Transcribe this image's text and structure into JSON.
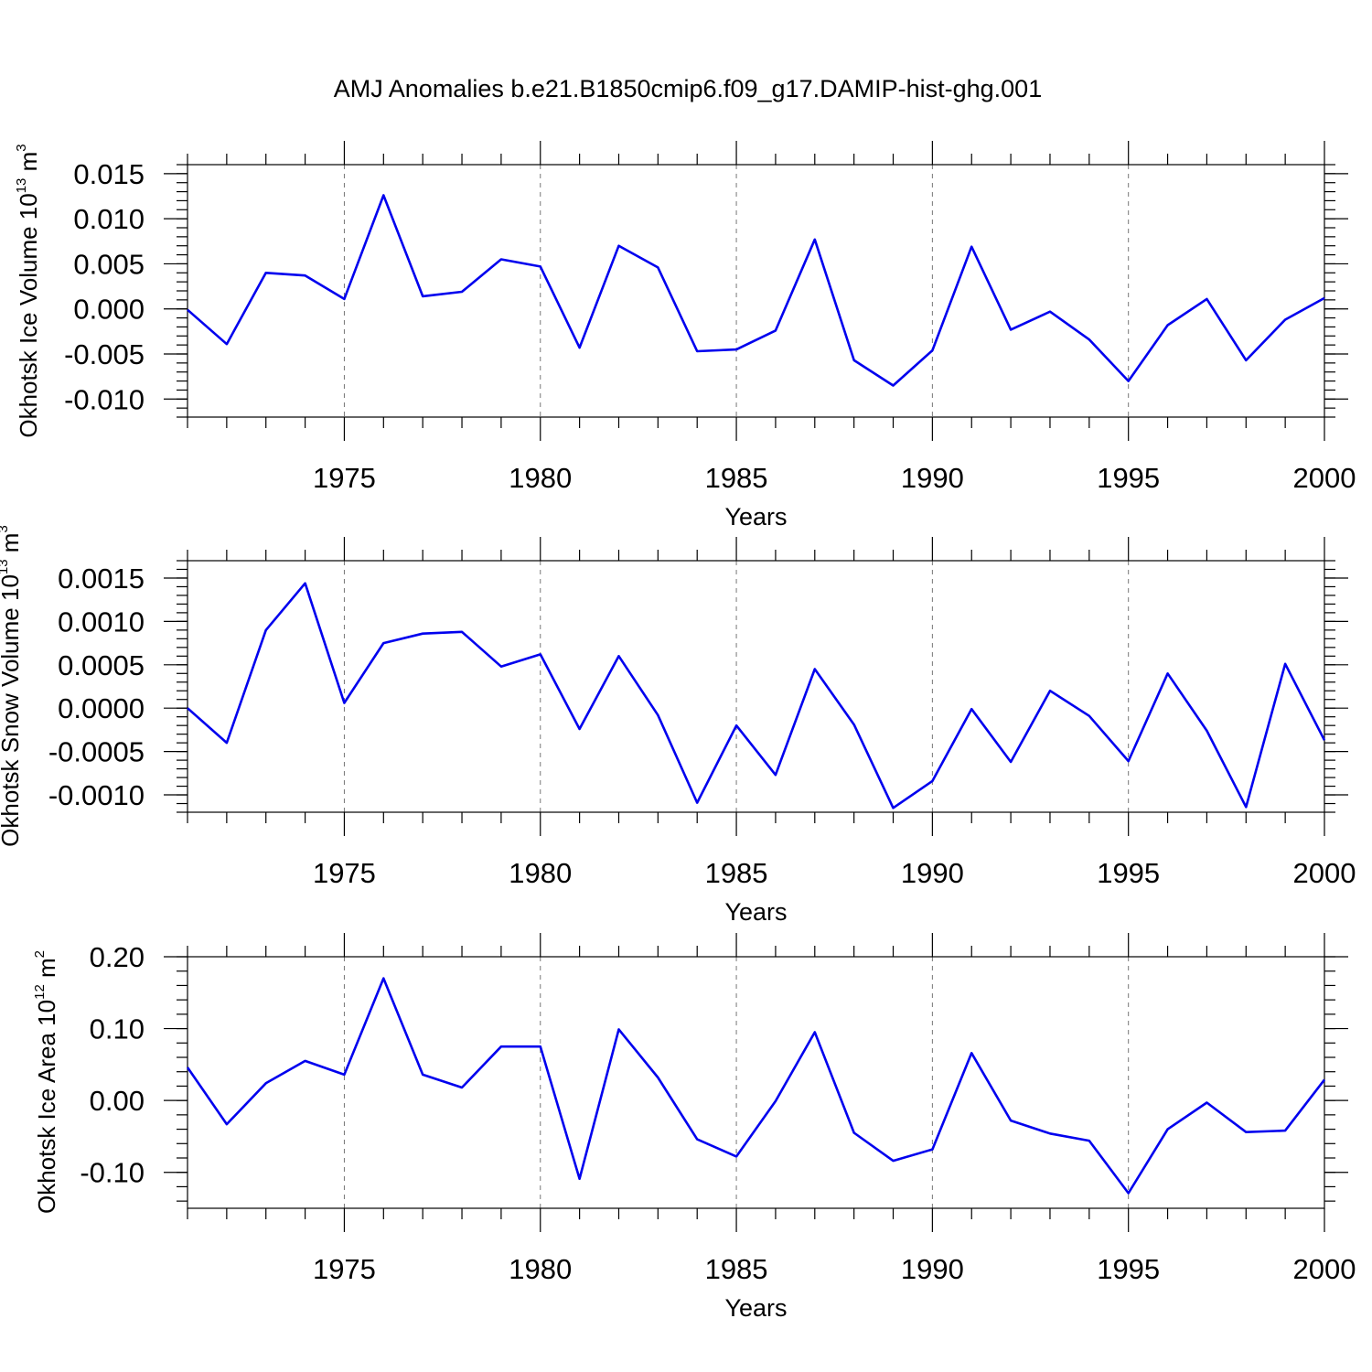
{
  "title": "AMJ Anomalies b.e21.B1850cmip6.f09_g17.DAMIP-hist-ghg.001",
  "chart_data": [
    {
      "type": "line",
      "title": "",
      "xlabel": "Years",
      "ylabel": "Okhotsk Ice Volume 10",
      "ylabel_exp": "13",
      "ylabel_unit": " m",
      "ylabel_unit_exp": "3",
      "xlim": [
        1971,
        2000
      ],
      "ylim": [
        -0.012,
        0.016
      ],
      "x_ticks": [
        1975,
        1980,
        1985,
        1990,
        1995,
        2000
      ],
      "x_tick_labels": [
        "1975",
        "1980",
        "1985",
        "1990",
        "1995",
        "2000"
      ],
      "y_ticks": [
        -0.01,
        -0.005,
        0.0,
        0.005,
        0.01,
        0.015
      ],
      "y_tick_labels": [
        "-0.010",
        "-0.005",
        "0.000",
        "0.005",
        "0.010",
        "0.015"
      ],
      "y_minor_step": 0.001,
      "grid": "vertical dashed at major x ticks",
      "color": "#0000ee",
      "x": [
        1971,
        1972,
        1973,
        1974,
        1975,
        1976,
        1977,
        1978,
        1979,
        1980,
        1981,
        1982,
        1983,
        1984,
        1985,
        1986,
        1987,
        1988,
        1989,
        1990,
        1991,
        1992,
        1993,
        1994,
        1995,
        1996,
        1997,
        1998,
        1999,
        2000
      ],
      "values": [
        -0.0001,
        -0.0039,
        0.004,
        0.0037,
        0.0011,
        0.0126,
        0.0014,
        0.0019,
        0.0055,
        0.0047,
        -0.0043,
        0.007,
        0.0046,
        -0.0047,
        -0.0045,
        -0.0024,
        0.0077,
        -0.0057,
        -0.0085,
        -0.0046,
        0.0069,
        -0.0023,
        -0.0003,
        -0.0034,
        -0.008,
        -0.0018,
        0.0011,
        -0.0057,
        -0.0012,
        0.0012
      ]
    },
    {
      "type": "line",
      "title": "",
      "xlabel": "Years",
      "ylabel": "Okhotsk Snow Volume 10",
      "ylabel_exp": "13",
      "ylabel_unit": " m",
      "ylabel_unit_exp": "3",
      "xlim": [
        1971,
        2000
      ],
      "ylim": [
        -0.0012,
        0.0017
      ],
      "x_ticks": [
        1975,
        1980,
        1985,
        1990,
        1995,
        2000
      ],
      "x_tick_labels": [
        "1975",
        "1980",
        "1985",
        "1990",
        "1995",
        "2000"
      ],
      "y_ticks": [
        -0.001,
        -0.0005,
        0.0,
        0.0005,
        0.001,
        0.0015
      ],
      "y_tick_labels": [
        "-0.0010",
        "-0.0005",
        "0.0000",
        "0.0005",
        "0.0010",
        "0.0015"
      ],
      "y_minor_step": 0.0001,
      "grid": "vertical dashed at major x ticks",
      "color": "#0000ee",
      "x": [
        1971,
        1972,
        1973,
        1974,
        1975,
        1976,
        1977,
        1978,
        1979,
        1980,
        1981,
        1982,
        1983,
        1984,
        1985,
        1986,
        1987,
        1988,
        1989,
        1990,
        1991,
        1992,
        1993,
        1994,
        1995,
        1996,
        1997,
        1998,
        1999,
        2000
      ],
      "values": [
        0.0,
        -0.0004,
        0.0009,
        0.00144,
        6e-05,
        0.00075,
        0.00086,
        0.00088,
        0.00048,
        0.00062,
        -0.00024,
        0.0006,
        -8e-05,
        -0.00109,
        -0.0002,
        -0.00077,
        0.00045,
        -0.00019,
        -0.00115,
        -0.00084,
        -1e-05,
        -0.00062,
        0.0002,
        -9e-05,
        -0.00061,
        0.0004,
        -0.00026,
        -0.00114,
        0.00051,
        -0.00037
      ]
    },
    {
      "type": "line",
      "title": "",
      "xlabel": "Years",
      "ylabel": "Okhotsk Ice Area 10",
      "ylabel_exp": "12",
      "ylabel_unit": " m",
      "ylabel_unit_exp": "2",
      "xlim": [
        1971,
        2000
      ],
      "ylim": [
        -0.15,
        0.2
      ],
      "x_ticks": [
        1975,
        1980,
        1985,
        1990,
        1995,
        2000
      ],
      "x_tick_labels": [
        "1975",
        "1980",
        "1985",
        "1990",
        "1995",
        "2000"
      ],
      "y_ticks": [
        -0.1,
        0.0,
        0.1,
        0.2
      ],
      "y_tick_labels": [
        "-0.10",
        "0.00",
        "0.10",
        "0.20"
      ],
      "y_minor_step": 0.02,
      "grid": "vertical dashed at major x ticks",
      "color": "#0000ee",
      "x": [
        1971,
        1972,
        1973,
        1974,
        1975,
        1976,
        1977,
        1978,
        1979,
        1980,
        1981,
        1982,
        1983,
        1984,
        1985,
        1986,
        1987,
        1988,
        1989,
        1990,
        1991,
        1992,
        1993,
        1994,
        1995,
        1996,
        1997,
        1998,
        1999,
        2000
      ],
      "values": [
        0.046,
        -0.033,
        0.024,
        0.055,
        0.036,
        0.17,
        0.036,
        0.018,
        0.075,
        0.075,
        -0.109,
        0.099,
        0.032,
        -0.054,
        -0.078,
        -0.001,
        0.095,
        -0.045,
        -0.084,
        -0.068,
        0.066,
        -0.028,
        -0.046,
        -0.056,
        -0.129,
        -0.04,
        -0.003,
        -0.044,
        -0.042,
        0.029
      ]
    }
  ]
}
